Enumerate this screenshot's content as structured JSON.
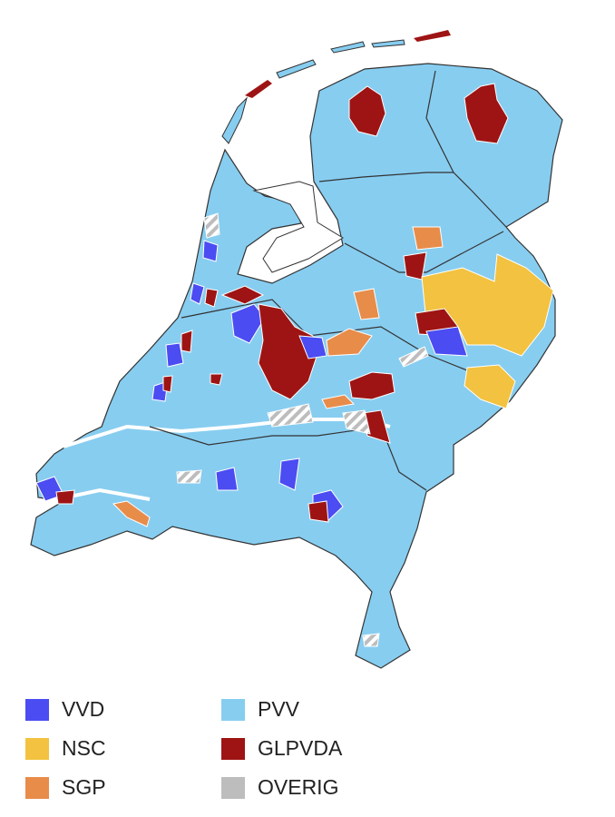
{
  "legend": [
    {
      "label": "VVD",
      "color": "#4b4cf2"
    },
    {
      "label": "PVV",
      "color": "#87cdf0"
    },
    {
      "label": "NSC",
      "color": "#f2c240"
    },
    {
      "label": "GLPVDA",
      "color": "#9e1414"
    },
    {
      "label": "SGP",
      "color": "#e88c4a"
    },
    {
      "label": "OVERIG",
      "color": "#bdbdbd"
    }
  ]
}
